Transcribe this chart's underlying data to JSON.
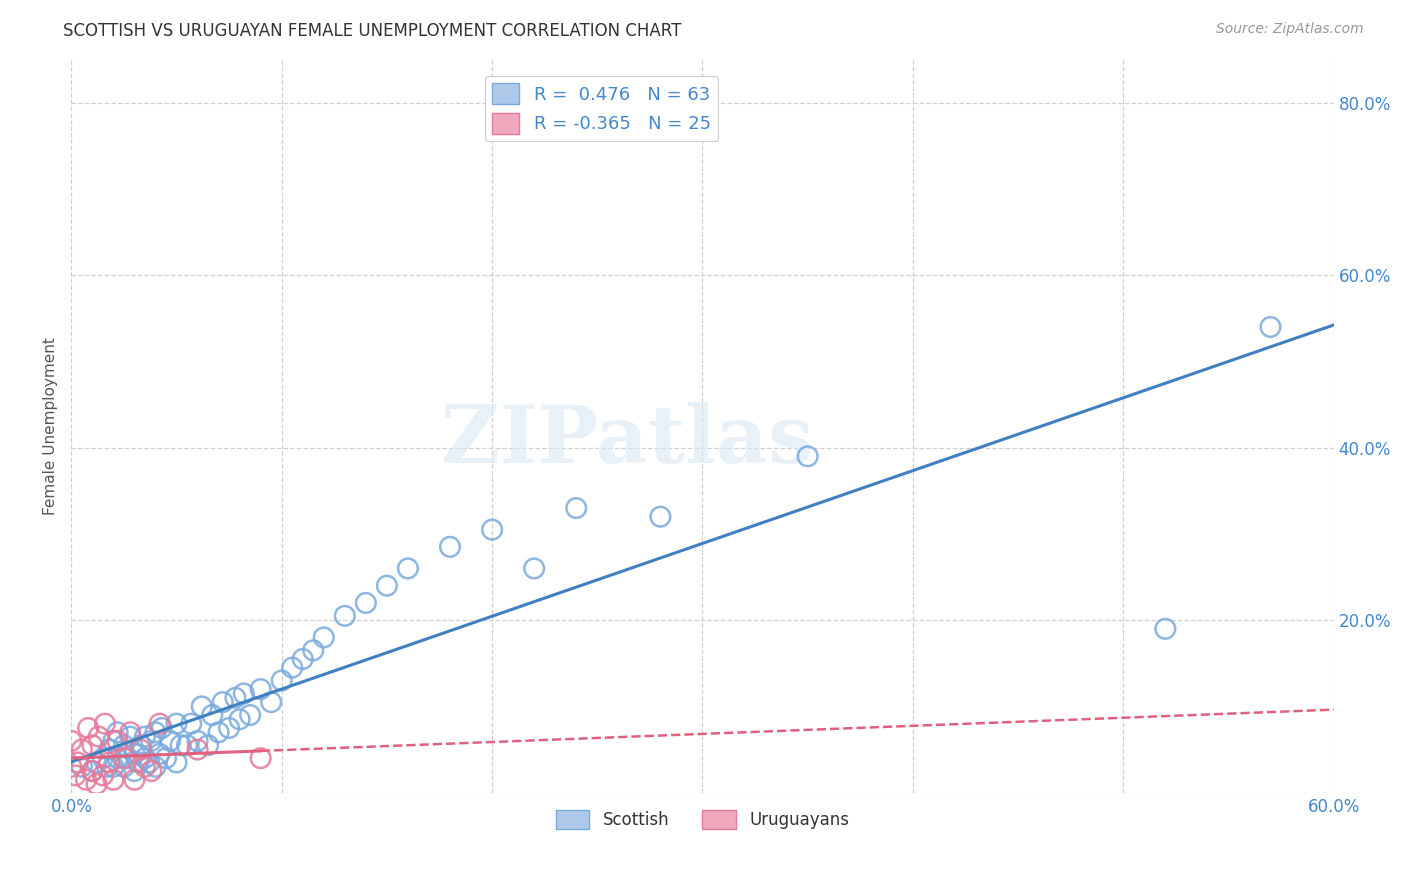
{
  "title": "SCOTTISH VS URUGUAYAN FEMALE UNEMPLOYMENT CORRELATION CHART",
  "source": "Source: ZipAtlas.com",
  "ylabel": "Female Unemployment",
  "xlabel": "",
  "xlim": [
    0.0,
    0.6
  ],
  "ylim": [
    0.0,
    0.85
  ],
  "xticks": [
    0.0,
    0.1,
    0.2,
    0.3,
    0.4,
    0.5,
    0.6
  ],
  "yticks": [
    0.0,
    0.2,
    0.4,
    0.6,
    0.8
  ],
  "ytick_labels_right": [
    "",
    "20.0%",
    "40.0%",
    "60.0%",
    "80.0%"
  ],
  "xtick_labels": [
    "0.0%",
    "",
    "",
    "",
    "",
    "",
    "60.0%"
  ],
  "legend_r_scottish": "R =  0.476",
  "legend_n_scottish": "N = 63",
  "legend_r_uruguayan": "R = -0.365",
  "legend_n_uruguayan": "N = 25",
  "scottish_color": "#adc8e8",
  "uruguayan_color": "#f2a8bc",
  "scottish_edge_color": "#7aaadc",
  "uruguayan_edge_color": "#e87898",
  "scottish_line_color": "#4080c0",
  "uruguayan_line_color": "#e06080",
  "scottish_x": [
    0.005,
    0.01,
    0.012,
    0.015,
    0.017,
    0.018,
    0.02,
    0.02,
    0.022,
    0.022,
    0.025,
    0.025,
    0.027,
    0.028,
    0.03,
    0.03,
    0.032,
    0.033,
    0.035,
    0.035,
    0.037,
    0.038,
    0.04,
    0.04,
    0.042,
    0.043,
    0.045,
    0.047,
    0.05,
    0.05,
    0.052,
    0.055,
    0.057,
    0.06,
    0.062,
    0.065,
    0.067,
    0.07,
    0.072,
    0.075,
    0.078,
    0.08,
    0.082,
    0.085,
    0.09,
    0.095,
    0.1,
    0.105,
    0.11,
    0.115,
    0.12,
    0.13,
    0.14,
    0.15,
    0.16,
    0.18,
    0.2,
    0.22,
    0.24,
    0.28,
    0.35,
    0.52,
    0.57
  ],
  "scottish_y": [
    0.03,
    0.025,
    0.035,
    0.04,
    0.03,
    0.05,
    0.03,
    0.06,
    0.04,
    0.07,
    0.03,
    0.055,
    0.04,
    0.065,
    0.025,
    0.045,
    0.035,
    0.055,
    0.04,
    0.065,
    0.035,
    0.06,
    0.03,
    0.07,
    0.045,
    0.075,
    0.04,
    0.06,
    0.035,
    0.08,
    0.055,
    0.055,
    0.08,
    0.06,
    0.1,
    0.055,
    0.09,
    0.07,
    0.105,
    0.075,
    0.11,
    0.085,
    0.115,
    0.09,
    0.12,
    0.105,
    0.13,
    0.145,
    0.155,
    0.165,
    0.18,
    0.205,
    0.22,
    0.24,
    0.26,
    0.285,
    0.305,
    0.26,
    0.33,
    0.32,
    0.39,
    0.19,
    0.54
  ],
  "uruguayan_x": [
    0.0,
    0.0,
    0.002,
    0.003,
    0.005,
    0.007,
    0.008,
    0.01,
    0.01,
    0.012,
    0.013,
    0.015,
    0.016,
    0.018,
    0.02,
    0.022,
    0.025,
    0.028,
    0.03,
    0.033,
    0.035,
    0.038,
    0.042,
    0.06,
    0.09
  ],
  "uruguayan_y": [
    0.03,
    0.06,
    0.02,
    0.035,
    0.05,
    0.015,
    0.075,
    0.025,
    0.055,
    0.01,
    0.065,
    0.02,
    0.08,
    0.035,
    0.015,
    0.06,
    0.04,
    0.07,
    0.015,
    0.05,
    0.03,
    0.025,
    0.08,
    0.05,
    0.04
  ],
  "watermark_text": "ZIPatlas",
  "background_color": "#ffffff",
  "grid_color": "#d0d0d0"
}
